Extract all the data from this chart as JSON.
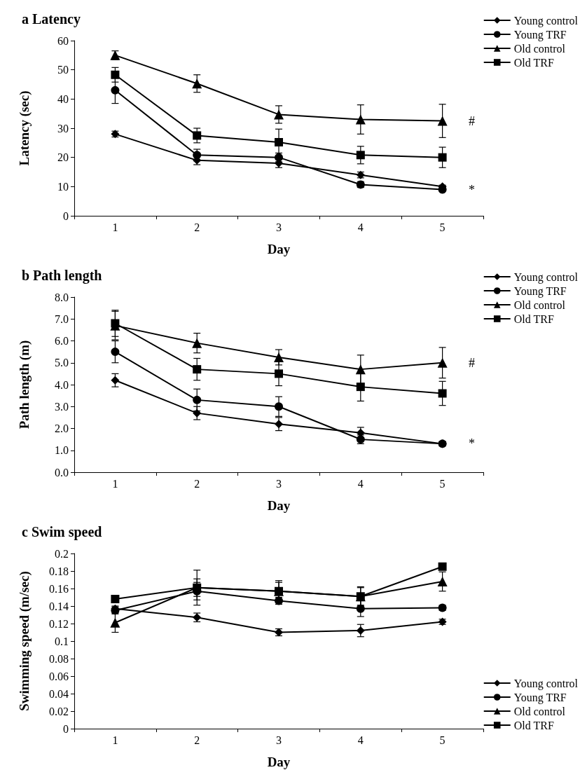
{
  "chart_data": [
    {
      "type": "line",
      "title": "a Latency",
      "xlabel": "Day",
      "ylabel": "Latency (sec)",
      "categories": [
        "1",
        "2",
        "3",
        "4",
        "5"
      ],
      "ylim": [
        0,
        60
      ],
      "yticks": [
        0,
        10,
        20,
        30,
        40,
        50,
        60
      ],
      "grid": false,
      "legend": "top right",
      "series": [
        {
          "name": "Young control",
          "color": "#000000",
          "marker": "diamond",
          "values": [
            28,
            19,
            18,
            14,
            10
          ],
          "errors": [
            1,
            1.5,
            1.5,
            1,
            0.5
          ]
        },
        {
          "name": "Young TRF",
          "color": "#000000",
          "marker": "circle",
          "values": [
            43,
            20.8,
            20,
            10.7,
            9
          ],
          "errors": [
            4.5,
            2,
            1.5,
            1,
            0.5
          ]
        },
        {
          "name": "Old control",
          "color": "#000000",
          "marker": "triangle",
          "values": [
            55,
            45.3,
            34.7,
            33,
            32.5
          ],
          "errors": [
            1.5,
            3,
            3,
            5,
            5.7
          ]
        },
        {
          "name": "Old TRF",
          "color": "#000000",
          "marker": "square",
          "values": [
            48.3,
            27.5,
            25.2,
            20.8,
            20
          ],
          "errors": [
            2.5,
            2.5,
            4.5,
            3,
            3.5
          ]
        }
      ],
      "annotations": [
        {
          "text": "#",
          "x": "5",
          "y": 32.5
        },
        {
          "text": "*",
          "x": "5",
          "y": 9
        }
      ]
    },
    {
      "type": "line",
      "title": "b Path length",
      "xlabel": "Day",
      "ylabel": "Path length (m)",
      "categories": [
        "1",
        "2",
        "3",
        "4",
        "5"
      ],
      "ylim": [
        0,
        8
      ],
      "yticks": [
        {
          "value": 0,
          "label": "0.0"
        },
        {
          "value": 1,
          "label": "1.0"
        },
        {
          "value": 2,
          "label": "2.0"
        },
        {
          "value": 3,
          "label": "3.0"
        },
        {
          "value": 4,
          "label": "4.0"
        },
        {
          "value": 5,
          "label": "5.0"
        },
        {
          "value": 6,
          "label": "6.0"
        },
        {
          "value": 7,
          "label": "7.0"
        },
        {
          "value": 8,
          "label": "8.0"
        }
      ],
      "grid": false,
      "legend": "top right",
      "series": [
        {
          "name": "Young control",
          "color": "#000000",
          "marker": "diamond",
          "values": [
            4.2,
            2.7,
            2.2,
            1.8,
            1.3
          ],
          "errors": [
            0.3,
            0.3,
            0.3,
            0.25,
            0.1
          ]
        },
        {
          "name": "Young TRF",
          "color": "#000000",
          "marker": "circle",
          "values": [
            5.5,
            3.3,
            3.0,
            1.5,
            1.3
          ],
          "errors": [
            0.5,
            0.5,
            0.45,
            0.2,
            0.1
          ]
        },
        {
          "name": "Old control",
          "color": "#000000",
          "marker": "triangle",
          "values": [
            6.7,
            5.9,
            5.25,
            4.7,
            5.0
          ],
          "errors": [
            0.65,
            0.45,
            0.35,
            0.65,
            0.7
          ]
        },
        {
          "name": "Old TRF",
          "color": "#000000",
          "marker": "square",
          "values": [
            6.8,
            4.7,
            4.5,
            3.9,
            3.6
          ],
          "errors": [
            0.6,
            0.5,
            0.55,
            0.65,
            0.55
          ]
        }
      ],
      "annotations": [
        {
          "text": "#",
          "x": "5",
          "y": 5.0
        },
        {
          "text": "*",
          "x": "5",
          "y": 1.3
        }
      ]
    },
    {
      "type": "line",
      "title": "c Swim speed",
      "xlabel": "Day",
      "ylabel": "Swimming speed (m/sec)",
      "categories": [
        "1",
        "2",
        "3",
        "4",
        "5"
      ],
      "ylim": [
        0,
        0.2
      ],
      "yticks": [
        0,
        0.02,
        0.04,
        0.06,
        0.08,
        0.1,
        0.12,
        0.14,
        0.16,
        0.18,
        0.2
      ],
      "grid": false,
      "legend": "bottom right",
      "series": [
        {
          "name": "Young control",
          "color": "#000000",
          "marker": "diamond",
          "values": [
            0.137,
            0.127,
            0.11,
            0.112,
            0.122
          ],
          "errors": [
            0.003,
            0.005,
            0.004,
            0.007,
            0.003
          ]
        },
        {
          "name": "Young TRF",
          "color": "#000000",
          "marker": "circle",
          "values": [
            0.135,
            0.157,
            0.146,
            0.137,
            0.138
          ],
          "errors": [
            0.004,
            0.01,
            0.004,
            0.009,
            0.003
          ]
        },
        {
          "name": "Old control",
          "color": "#000000",
          "marker": "triangle",
          "values": [
            0.121,
            0.161,
            0.157,
            0.151,
            0.168
          ],
          "errors": [
            0.011,
            0.02,
            0.012,
            0.011,
            0.011
          ]
        },
        {
          "name": "Old TRF",
          "color": "#000000",
          "marker": "square",
          "values": [
            0.148,
            0.161,
            0.157,
            0.151,
            0.185
          ],
          "errors": [
            0.004,
            0.01,
            0.01,
            0.01,
            0.003
          ]
        }
      ]
    }
  ]
}
